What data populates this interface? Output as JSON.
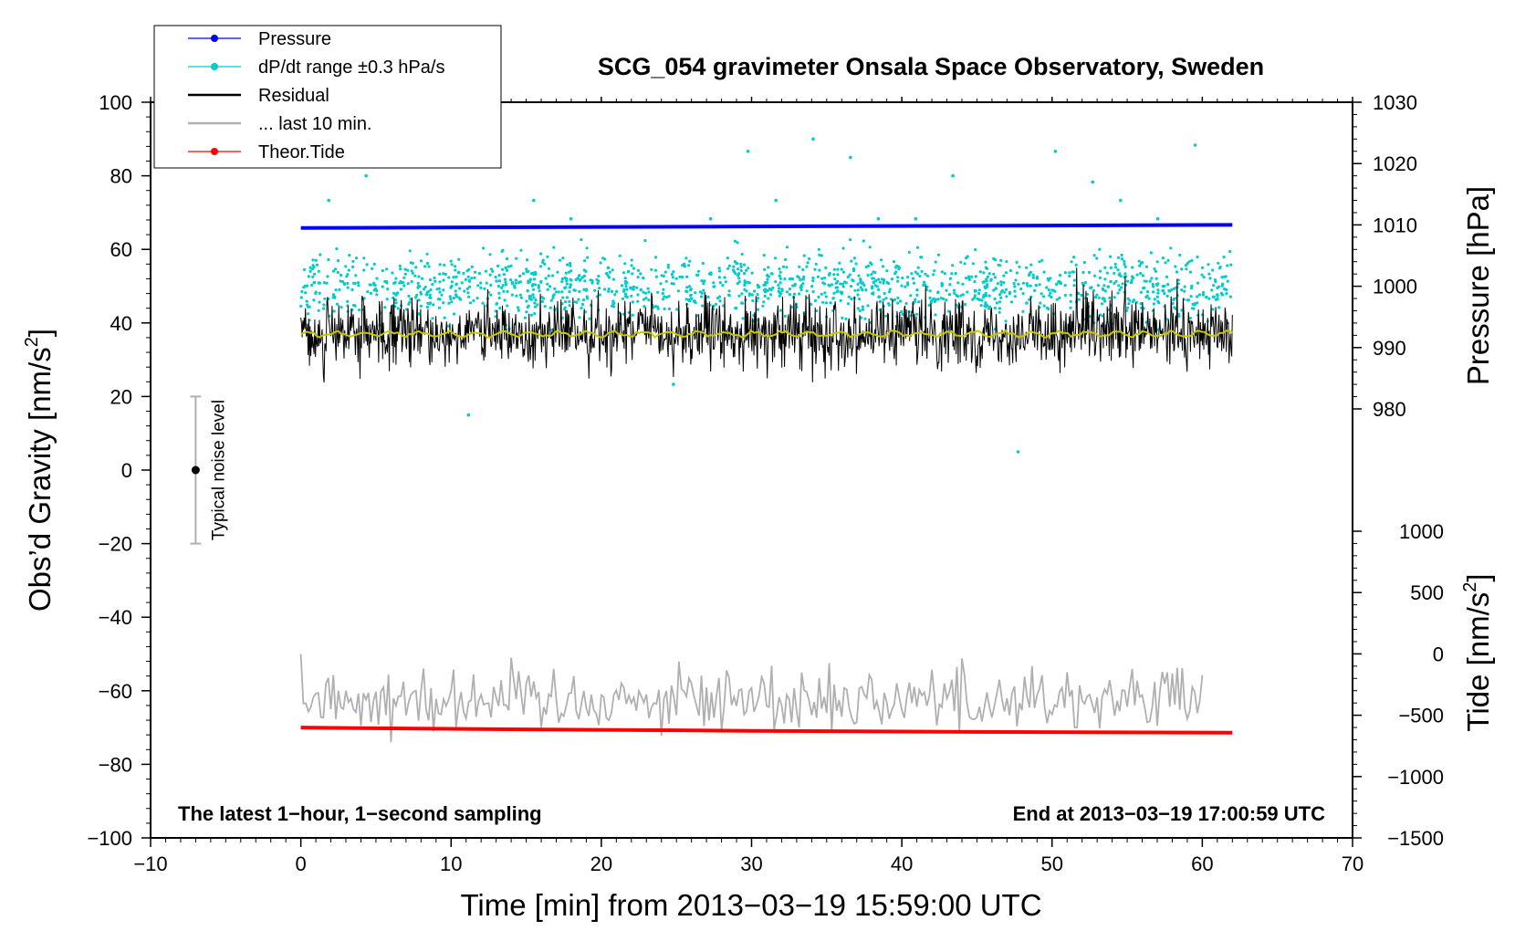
{
  "chart_data": {
    "type": "line",
    "title": "SCG_054 gravimeter Onsala Space Observatory, Sweden",
    "xlabel": "Time [min] from 2013−03−19 15:59:00 UTC",
    "ylabel_left": "Obs’d Gravity [nm/s",
    "ylabel_left_sup": "2",
    "ylabel_left_end": "]",
    "ylabel_right_pressure": "Pressure [hPa]",
    "ylabel_right_tide": "Tide [nm/s",
    "ylabel_right_tide_sup": "2",
    "ylabel_right_tide_end": "]",
    "xlim": [
      -10,
      70
    ],
    "ylim": [
      -100,
      100
    ],
    "pressure_axis": {
      "range": [
        980,
        1030
      ]
    },
    "tide_axis": {
      "range": [
        -1500,
        1000
      ]
    },
    "x_ticks": [
      "−10",
      "0",
      "10",
      "20",
      "30",
      "40",
      "50",
      "60",
      "70"
    ],
    "y_ticks": [
      "100",
      "80",
      "60",
      "40",
      "20",
      "0",
      "−20",
      "−40",
      "−60",
      "−80",
      "−100"
    ],
    "pressure_ticks": [
      "1030",
      "1020",
      "1010",
      "1000",
      "990",
      "980"
    ],
    "tide_ticks": [
      "1000",
      "500",
      "0",
      "−500",
      "−1000",
      "−1500"
    ],
    "legend": {
      "placement": "top-left",
      "entries": [
        {
          "label": "Pressure",
          "color": "#0000ff"
        },
        {
          "label": "dP/dt range ±0.3 hPa/s",
          "color": "#00cccc"
        },
        {
          "label": "Residual",
          "color": "#000000"
        },
        {
          "label": "... last 10 min.",
          "color": "#b0b0b0"
        },
        {
          "label": "Theor.Tide",
          "color": "#ff0000"
        }
      ]
    },
    "annotations": {
      "left_bottom": "The latest 1−hour, 1−second sampling",
      "right_bottom": "End at 2013−03−19 17:00:59 UTC",
      "noise_label": "Typical noise level"
    },
    "noise_bar": {
      "x": -7,
      "center": 0,
      "low": -20,
      "high": 20
    },
    "series": [
      {
        "name": "Pressure",
        "axis": "pressure",
        "color": "#0000ff",
        "x_range": [
          0,
          62
        ],
        "start_hPa": 1009.5,
        "end_hPa": 1010.0
      },
      {
        "name": "dP/dt range",
        "axis": "pressure",
        "color": "#00cccc",
        "x_range": [
          0,
          62
        ],
        "center_hPa": 1000,
        "spread_hPa": 3,
        "outliers_hPa": [
          1026,
          1022,
          1017,
          1003,
          1021,
          1023,
          1003,
          1018,
          1018,
          1011,
          1022,
          979,
          1024,
          1011,
          1011,
          1011,
          1014,
          984,
          973,
          1022,
          1014,
          1014,
          1014,
          1011
        ]
      },
      {
        "name": "Residual",
        "axis": "gravity",
        "color": "#000000",
        "x_range": [
          0,
          62
        ],
        "center": 37,
        "amplitude": 5
      },
      {
        "name": "Residual smoothed",
        "axis": "gravity",
        "color": "#c8c800",
        "x_range": [
          0,
          62
        ],
        "center": 37
      },
      {
        "name": "... last 10 min.",
        "axis": "gravity",
        "color": "#b0b0b0",
        "x_range": [
          0,
          60
        ],
        "center": -62,
        "amplitude": 5
      },
      {
        "name": "Theor.Tide",
        "axis": "gravity",
        "color": "#ff0000",
        "x": [
          0,
          5,
          15,
          30,
          45,
          62
        ],
        "values": [
          -70,
          -70.2,
          -70.5,
          -70.9,
          -71.2,
          -71.4
        ]
      }
    ]
  }
}
